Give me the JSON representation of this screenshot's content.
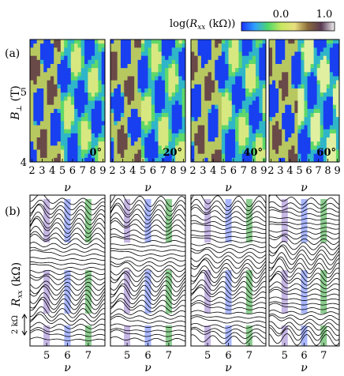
{
  "colorbar": {
    "title": "log(R_xx (kΩ))",
    "title_main": "log(",
    "title_R": "R",
    "title_sub": "xx",
    "title_tail": " (kΩ))",
    "tick_labels": [
      "0.0",
      "1.0"
    ],
    "range": [
      -0.5,
      1.0
    ],
    "colormap": [
      "#1a33ff",
      "#2fa0ff",
      "#4fd86a",
      "#c8e860",
      "#e8e080",
      "#8a6a3a",
      "#5a3a55",
      "#f2f2f2"
    ]
  },
  "panel_a": {
    "label": "(a)",
    "ylabel_main": "B",
    "ylabel_sub": "⊥",
    "ylabel_unit": " (T)",
    "y_tick_labels": [
      "4",
      "5"
    ],
    "y_range": [
      4,
      5.9
    ],
    "x_tick_labels": [
      "2",
      "3",
      "4",
      "5",
      "6",
      "7",
      "8",
      "9"
    ],
    "x_range": [
      1.8,
      9.2
    ],
    "xlabel": "ν",
    "angles": [
      "0°",
      "20°",
      "40°",
      "60°"
    ]
  },
  "panel_b": {
    "label": "(b)",
    "ylabel_main": "R",
    "ylabel_sub": "xx",
    "ylabel_unit": " (kΩ)",
    "scale_label": "2 kΩ",
    "x_tick_labels": [
      "5",
      "6",
      "7"
    ],
    "x_range": [
      4.2,
      7.8
    ],
    "xlabel": "ν",
    "highlight_colors": [
      "#b39ddb",
      "#8c9eff",
      "#66bb6a"
    ],
    "highlight_nu": [
      5,
      6,
      7
    ],
    "trace_count": 32
  },
  "chart_data": [
    {
      "type": "heatmap",
      "panels": [
        "0°",
        "20°",
        "40°",
        "60°"
      ],
      "x": {
        "label": "ν",
        "ticks": [
          2,
          3,
          4,
          5,
          6,
          7,
          8,
          9
        ]
      },
      "y": {
        "label": "B⊥ (T)",
        "ticks": [
          4,
          5
        ]
      },
      "z": {
        "label": "log(Rxx (kΩ))",
        "range": [
          0.0,
          1.0
        ]
      }
    },
    {
      "type": "line",
      "panels": 4,
      "x": {
        "label": "ν",
        "ticks": [
          5,
          6,
          7
        ]
      },
      "y": {
        "label": "Rxx (kΩ)",
        "scale_bar": "2 kΩ"
      }
    }
  ]
}
